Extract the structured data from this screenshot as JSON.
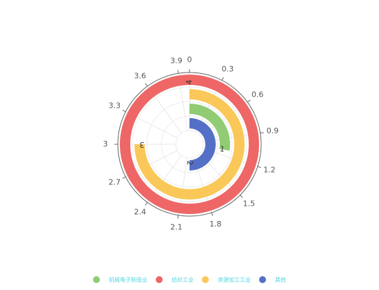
{
  "chart_data": {
    "type": "bar",
    "polar": true,
    "categories": [
      "4",
      "3",
      "1",
      "2"
    ],
    "series": [
      {
        "name": "机械电子制造业",
        "values": [
          0,
          0,
          1.1,
          0
        ],
        "color": "#91cc75"
      },
      {
        "name": "纺织工业",
        "values": [
          4,
          0,
          0,
          0
        ],
        "color": "#ee6666"
      },
      {
        "name": "资源加工工业",
        "values": [
          0,
          3,
          0,
          0
        ],
        "color": "#fac858"
      },
      {
        "name": "其他",
        "values": [
          0,
          0,
          0,
          2
        ],
        "color": "#5470c6"
      }
    ],
    "bar_labels": [
      "4",
      "3",
      "1",
      "2"
    ],
    "angle_axis": {
      "min": 0,
      "max": 4,
      "ticks": [
        "0",
        "0.3",
        "0.6",
        "0.9",
        "1.2",
        "1.5",
        "1.8",
        "2.1",
        "2.4",
        "2.7",
        "3",
        "3.3",
        "3.6",
        "3.9"
      ]
    },
    "legend_position": "bottom-center",
    "legend_text_color": "#4dd6e0",
    "grid": true
  }
}
